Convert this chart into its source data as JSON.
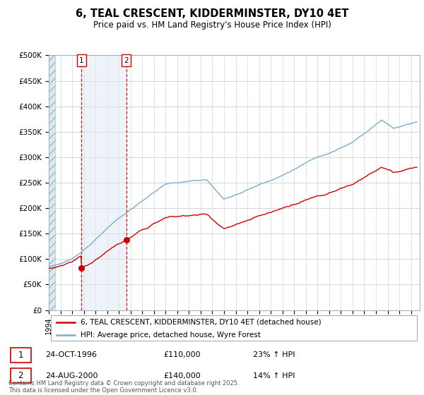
{
  "title": "6, TEAL CRESCENT, KIDDERMINSTER, DY10 4ET",
  "subtitle": "Price paid vs. HM Land Registry's House Price Index (HPI)",
  "ylim": [
    0,
    500000
  ],
  "xlim_start": 1994.0,
  "xlim_end": 2025.75,
  "ytick_vals": [
    0,
    50000,
    100000,
    150000,
    200000,
    250000,
    300000,
    350000,
    400000,
    450000,
    500000
  ],
  "ytick_labels": [
    "£0",
    "£50K",
    "£100K",
    "£150K",
    "£200K",
    "£250K",
    "£300K",
    "£350K",
    "£400K",
    "£450K",
    "£500K"
  ],
  "sale1_x": 1996.81,
  "sale1_y": 110000,
  "sale2_x": 2000.64,
  "sale2_y": 140000,
  "sale1_date": "24-OCT-1996",
  "sale1_price": "£110,000",
  "sale1_hpi": "23% ↑ HPI",
  "sale2_date": "24-AUG-2000",
  "sale2_price": "£140,000",
  "sale2_hpi": "14% ↑ HPI",
  "red_color": "#cc0000",
  "blue_color": "#7aadcf",
  "hatch_fill": "#dce8f0",
  "shade_fill": "#dce8f5",
  "legend_red": "6, TEAL CRESCENT, KIDDERMINSTER, DY10 4ET (detached house)",
  "legend_blue": "HPI: Average price, detached house, Wyre Forest",
  "footer": "Contains HM Land Registry data © Crown copyright and database right 2025.\nThis data is licensed under the Open Government Licence v3.0."
}
